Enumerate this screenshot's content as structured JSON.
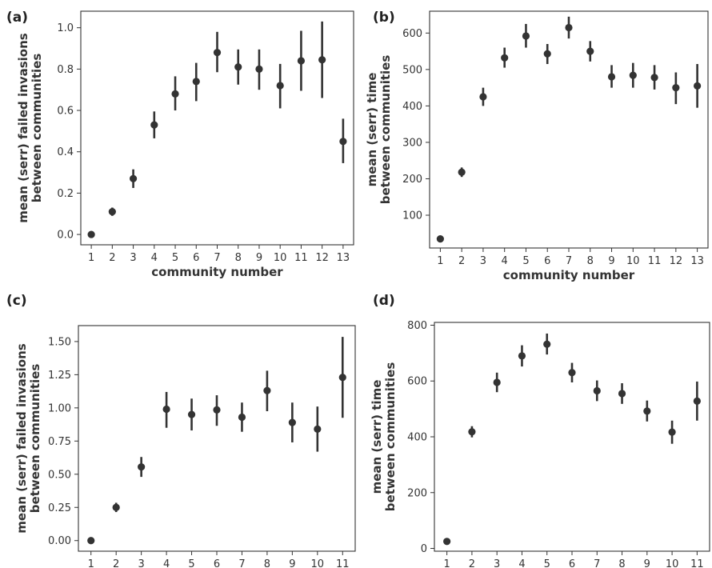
{
  "chart_data": [
    {
      "panel": "(a)",
      "type": "scatter",
      "xlabel": "community number",
      "ylabel": [
        "mean (serr) failed invasions",
        "between communities"
      ],
      "x": [
        1,
        2,
        3,
        4,
        5,
        6,
        7,
        8,
        9,
        10,
        11,
        12,
        13
      ],
      "y": [
        0.0,
        0.11,
        0.27,
        0.53,
        0.68,
        0.74,
        0.88,
        0.81,
        0.8,
        0.72,
        0.84,
        0.845,
        0.45
      ],
      "err_low": [
        0.0,
        0.09,
        0.225,
        0.465,
        0.6,
        0.645,
        0.785,
        0.725,
        0.7,
        0.61,
        0.695,
        0.66,
        0.345
      ],
      "err_high": [
        0.0,
        0.13,
        0.315,
        0.595,
        0.765,
        0.83,
        0.98,
        0.895,
        0.895,
        0.825,
        0.985,
        1.03,
        0.56
      ],
      "xlim": [
        0.5,
        13.5
      ],
      "ylim": [
        -0.05,
        1.08
      ],
      "yticks": [
        "0.0",
        "0.2",
        "0.4",
        "0.6",
        "0.8",
        "1.0"
      ],
      "ytick_values": [
        0,
        0.2,
        0.4,
        0.6,
        0.8,
        1.0
      ],
      "xticks": [
        "1",
        "2",
        "3",
        "4",
        "5",
        "6",
        "7",
        "8",
        "9",
        "10",
        "11",
        "12",
        "13"
      ]
    },
    {
      "panel": "(b)",
      "type": "scatter",
      "xlabel": "community number",
      "ylabel": [
        "mean (serr) time",
        "between communities"
      ],
      "x": [
        1,
        2,
        3,
        4,
        5,
        6,
        7,
        8,
        9,
        10,
        11,
        12,
        13
      ],
      "y": [
        35,
        218,
        425,
        532,
        592,
        543,
        615,
        550,
        480,
        484,
        478,
        450,
        455
      ],
      "err_low": [
        35,
        205,
        400,
        505,
        560,
        515,
        585,
        522,
        450,
        450,
        445,
        405,
        395
      ],
      "err_high": [
        35,
        231,
        450,
        560,
        625,
        570,
        645,
        578,
        512,
        518,
        512,
        492,
        515
      ],
      "xlim": [
        0.5,
        13.5
      ],
      "ylim": [
        10,
        660
      ],
      "yticks": [
        "100",
        "200",
        "300",
        "400",
        "500",
        "600"
      ],
      "ytick_values": [
        100,
        200,
        300,
        400,
        500,
        600
      ],
      "xticks": [
        "1",
        "2",
        "3",
        "4",
        "5",
        "6",
        "7",
        "8",
        "9",
        "10",
        "11",
        "12",
        "13"
      ]
    },
    {
      "panel": "(c)",
      "type": "scatter",
      "xlabel": "community number",
      "ylabel": [
        "mean (serr) failed invasions",
        "between communities"
      ],
      "x": [
        1,
        2,
        3,
        4,
        5,
        6,
        7,
        8,
        9,
        10,
        11
      ],
      "y": [
        0.0,
        0.25,
        0.555,
        0.99,
        0.95,
        0.985,
        0.93,
        1.13,
        0.89,
        0.84,
        1.23
      ],
      "err_low": [
        0.0,
        0.215,
        0.48,
        0.85,
        0.83,
        0.865,
        0.82,
        0.975,
        0.74,
        0.67,
        0.925
      ],
      "err_high": [
        0.0,
        0.285,
        0.63,
        1.12,
        1.07,
        1.095,
        1.04,
        1.28,
        1.04,
        1.01,
        1.535
      ],
      "xlim": [
        0.5,
        11.5
      ],
      "ylim": [
        -0.08,
        1.62
      ],
      "yticks": [
        "0.00",
        "0.25",
        "0.50",
        "0.75",
        "1.00",
        "1.25",
        "1.50"
      ],
      "ytick_values": [
        0,
        0.25,
        0.5,
        0.75,
        1.0,
        1.25,
        1.5
      ],
      "xticks": [
        "1",
        "2",
        "3",
        "4",
        "5",
        "6",
        "7",
        "8",
        "9",
        "10",
        "11"
      ]
    },
    {
      "panel": "(d)",
      "type": "scatter",
      "xlabel": "community number",
      "ylabel": [
        "mean (serr) time",
        "between communities"
      ],
      "x": [
        1,
        2,
        3,
        4,
        5,
        6,
        7,
        8,
        9,
        10,
        11
      ],
      "y": [
        25,
        418,
        595,
        690,
        732,
        630,
        565,
        555,
        492,
        417,
        528
      ],
      "err_low": [
        25,
        398,
        560,
        652,
        695,
        595,
        528,
        518,
        455,
        375,
        458
      ],
      "err_high": [
        25,
        438,
        630,
        728,
        770,
        665,
        602,
        592,
        530,
        458,
        598
      ],
      "xlim": [
        0.5,
        11.5
      ],
      "ylim": [
        -10,
        810
      ],
      "yticks": [
        "0",
        "200",
        "400",
        "600",
        "800"
      ],
      "ytick_values": [
        0,
        200,
        400,
        600,
        800
      ],
      "xticks": [
        "1",
        "2",
        "3",
        "4",
        "5",
        "6",
        "7",
        "8",
        "9",
        "10",
        "11"
      ]
    }
  ]
}
